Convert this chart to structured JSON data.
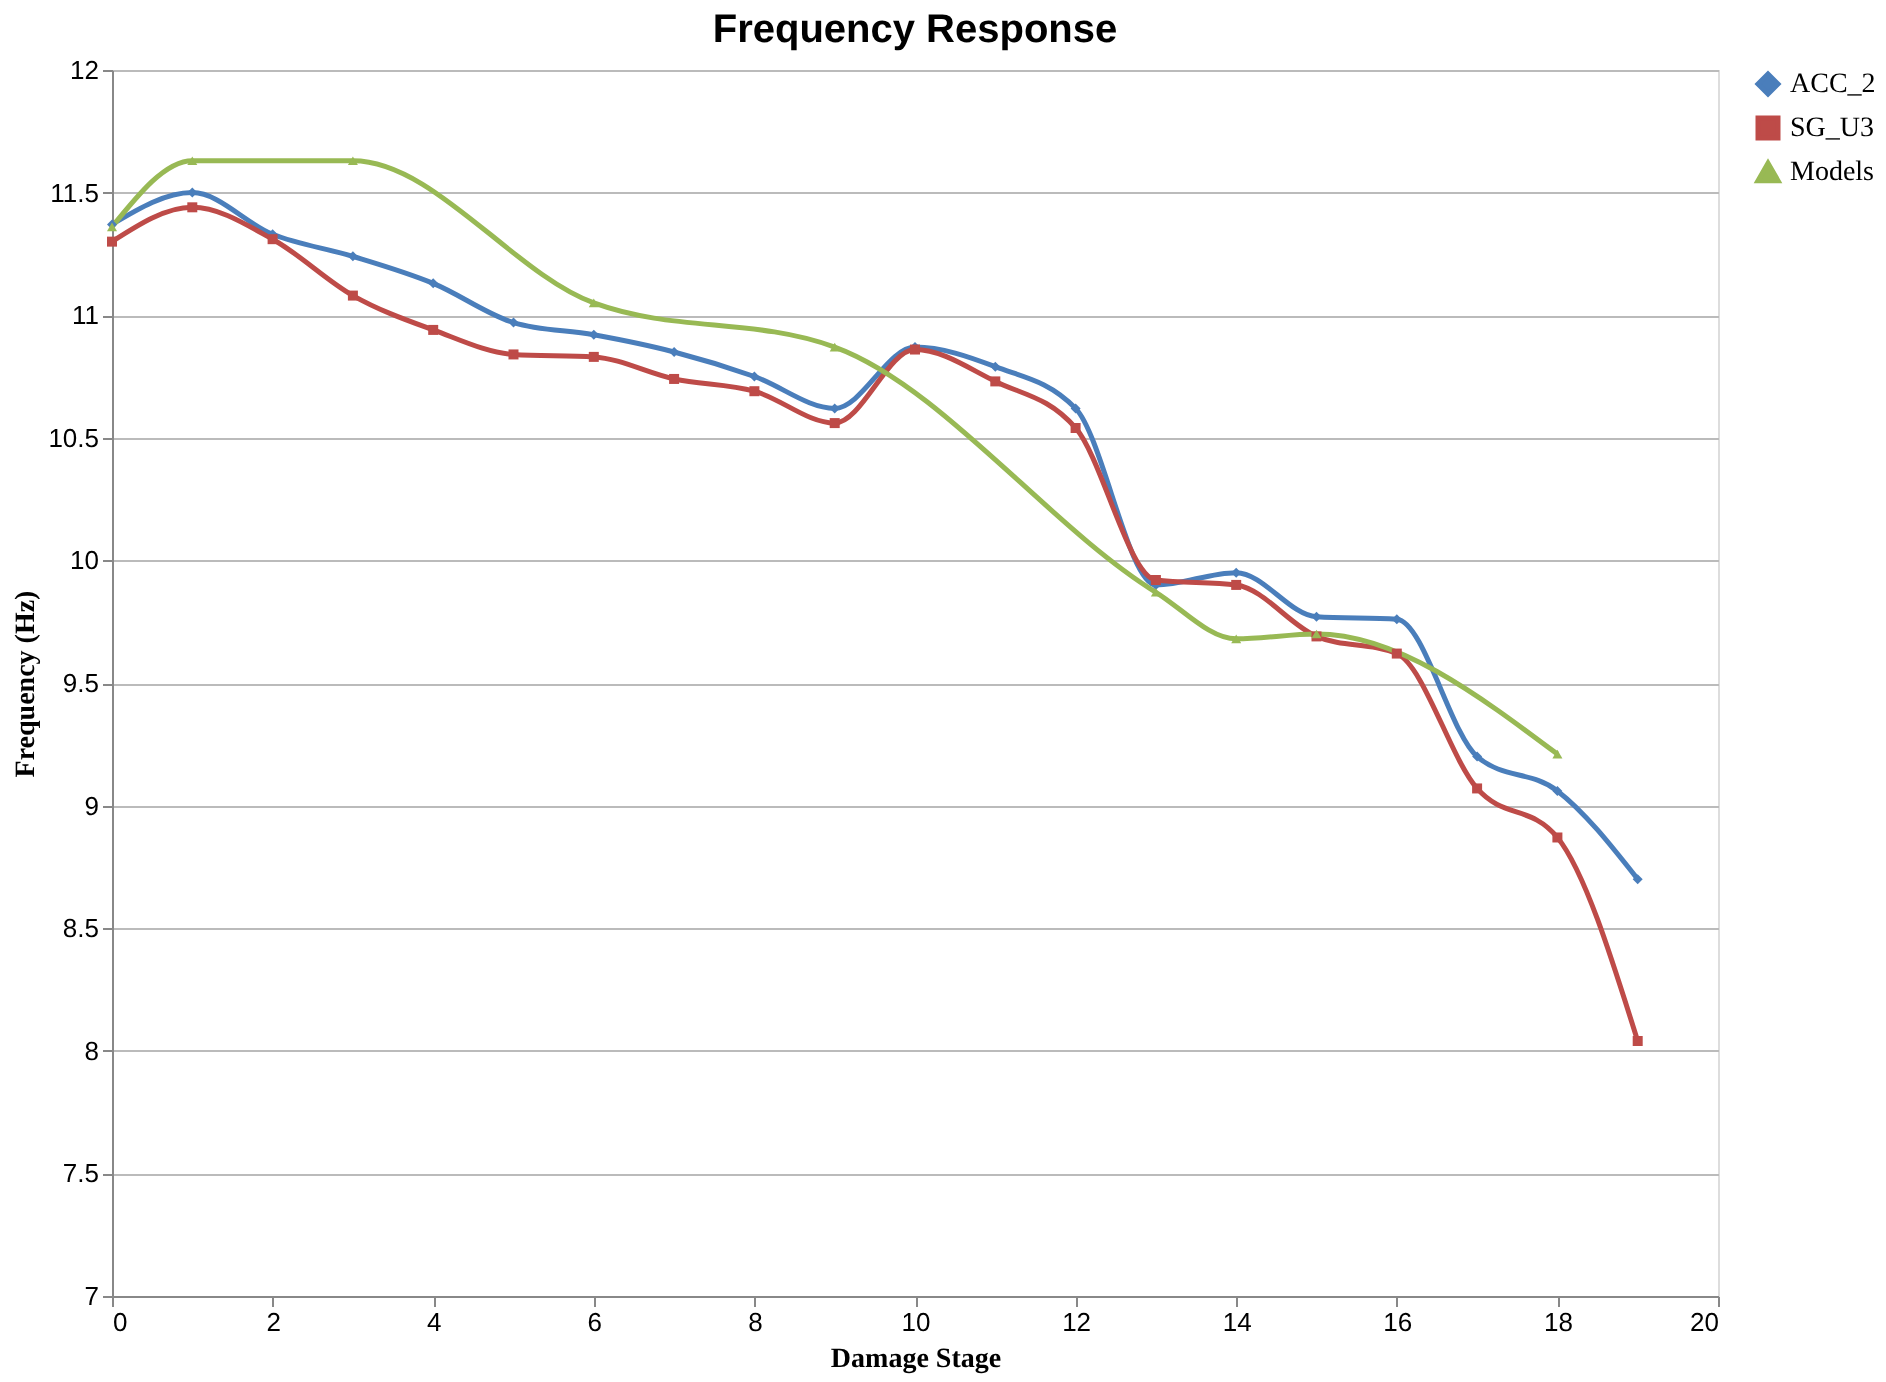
{
  "chart_data": {
    "type": "line",
    "title": "Frequency Response",
    "xlabel": "Damage Stage",
    "ylabel": "Frequency (Hz)",
    "xlim": [
      0,
      20
    ],
    "xticks": [
      0,
      2,
      4,
      6,
      8,
      10,
      12,
      14,
      16,
      18,
      20
    ],
    "ylim": [
      7,
      12
    ],
    "yticks": [
      7,
      7.5,
      8,
      8.5,
      9,
      9.5,
      10,
      10.5,
      11,
      11.5,
      12
    ],
    "grid": "y",
    "legend": "right",
    "series": [
      {
        "name": "ACC_2",
        "color": "#4a7ebb",
        "marker": "diamond",
        "x": [
          0,
          1,
          2,
          3,
          4,
          5,
          6,
          7,
          8,
          9,
          10,
          11,
          12,
          13,
          14,
          15,
          16,
          17,
          18,
          19
        ],
        "values": [
          11.37,
          11.5,
          11.33,
          11.24,
          11.13,
          10.97,
          10.92,
          10.85,
          10.75,
          10.62,
          10.87,
          10.79,
          10.62,
          9.9,
          9.95,
          9.77,
          9.76,
          9.2,
          9.06,
          8.7
        ]
      },
      {
        "name": "SG_U3",
        "color": "#be4b48",
        "marker": "square",
        "x": [
          0,
          1,
          2,
          3,
          4,
          5,
          6,
          7,
          8,
          9,
          10,
          11,
          12,
          13,
          14,
          15,
          16,
          17,
          18,
          19
        ],
        "values": [
          11.3,
          11.44,
          11.31,
          11.08,
          10.94,
          10.84,
          10.83,
          10.74,
          10.69,
          10.56,
          10.86,
          10.73,
          10.54,
          9.92,
          9.9,
          9.69,
          9.62,
          9.07,
          8.87,
          8.04
        ]
      },
      {
        "name": "Models",
        "color": "#98b954",
        "marker": "triangle",
        "x": [
          0,
          1,
          3,
          6,
          9,
          13,
          14,
          15,
          18
        ],
        "values": [
          11.36,
          11.63,
          11.63,
          11.05,
          10.87,
          9.87,
          9.68,
          9.7,
          9.21
        ]
      }
    ]
  }
}
